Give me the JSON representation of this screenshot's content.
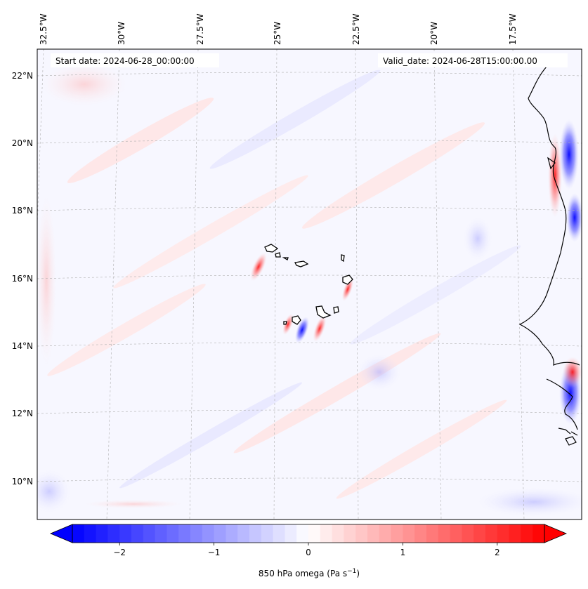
{
  "header": {
    "start_date": "Start date: 2024-06-28_00:00:00",
    "valid_date": "Valid_date: 2024-06-28T15:00:00.00"
  },
  "map": {
    "lon_labels": [
      "32.5°W",
      "30°W",
      "27.5°W",
      "25°W",
      "22.5°W",
      "20°W",
      "17.5°W"
    ],
    "lat_labels": [
      "22°N",
      "20°N",
      "18°N",
      "16°N",
      "14°N",
      "12°N",
      "10°N"
    ],
    "field": "850 hPa omega",
    "colors": {
      "negative": "#0000ff",
      "positive": "#ff0000",
      "coastline": "#000000",
      "gridline": "#b0b0b0"
    }
  },
  "colorbar": {
    "ticks": [
      "−2",
      "−1",
      "0",
      "1",
      "2"
    ],
    "tick_values": [
      -2,
      -1,
      0,
      1,
      2
    ],
    "range": [
      -2.5,
      2.5
    ],
    "label": "850 hPa omega (Pa s",
    "label_sup": "−1",
    "label_end": ")"
  }
}
